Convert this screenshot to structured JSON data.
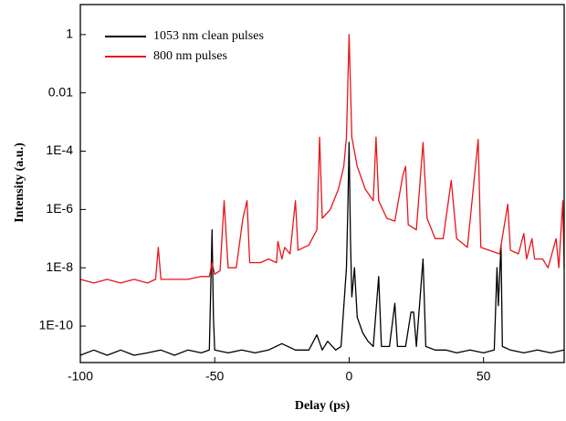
{
  "chart_data": {
    "type": "line",
    "xlabel": "Delay (ps)",
    "ylabel": "Intensity (a.u.)",
    "xlim": [
      -100,
      80
    ],
    "xticks": [
      -100,
      -50,
      0,
      50
    ],
    "ylim": [
      5.6e-12,
      10.7
    ],
    "log_y": true,
    "yticks": [
      {
        "value": 1e-10,
        "label": "1E-10"
      },
      {
        "value": 1e-08,
        "label": "1E-8"
      },
      {
        "value": 1e-06,
        "label": "1E-6"
      },
      {
        "value": 0.0001,
        "label": "1E-4"
      },
      0.01,
      1
    ],
    "legend": "upper left",
    "series": [
      {
        "name": "1053 nm clean pulses",
        "color": "#000000",
        "x": [
          -100,
          -95,
          -90,
          -85,
          -80,
          -75,
          -70,
          -65,
          -60,
          -55,
          -52,
          -51,
          -50.5,
          -50,
          -45,
          -40,
          -35,
          -30,
          -25,
          -20,
          -15,
          -12,
          -10,
          -8,
          -5,
          -3,
          -1,
          -0.5,
          0,
          0.5,
          1,
          2,
          3,
          5,
          7,
          9,
          11,
          12,
          15,
          17,
          18,
          21,
          23,
          24,
          25,
          27.5,
          28.5,
          32,
          36,
          40,
          45,
          50,
          54,
          55,
          55.5,
          56.5,
          57,
          60,
          65,
          70,
          75,
          80
        ],
        "values": [
          1e-11,
          1.5e-11,
          1e-11,
          1.5e-11,
          1e-11,
          1.2e-11,
          1.5e-11,
          1e-11,
          1.5e-11,
          1.2e-11,
          1.5e-11,
          2e-07,
          2e-10,
          1.5e-11,
          1.2e-11,
          1.5e-11,
          1.2e-11,
          1.5e-11,
          2.5e-11,
          1.5e-11,
          1.5e-11,
          5e-11,
          1.5e-11,
          3e-11,
          1.5e-11,
          2e-11,
          1e-08,
          1e-06,
          0.0002,
          1e-07,
          1e-09,
          1e-08,
          2e-10,
          6e-11,
          3e-11,
          2e-11,
          5e-09,
          2e-11,
          2e-11,
          6e-10,
          2e-11,
          2e-11,
          3e-10,
          3e-10,
          2e-11,
          2e-08,
          2e-11,
          1.5e-11,
          1.5e-11,
          1.2e-11,
          1.5e-11,
          1.2e-11,
          1.5e-11,
          1e-08,
          5e-10,
          6e-08,
          2e-11,
          1.5e-11,
          1.2e-11,
          1.5e-11,
          1.2e-11,
          1.5e-11
        ]
      },
      {
        "name": "800 nm pulses",
        "color": "#e8141b",
        "x": [
          -100,
          -95,
          -90,
          -85,
          -80,
          -75,
          -72,
          -71,
          -70,
          -65,
          -60,
          -55,
          -52,
          -51,
          -50,
          -48,
          -46.5,
          -45,
          -42,
          -39.5,
          -38,
          -37,
          -33,
          -30,
          -27,
          -26.5,
          -25,
          -24,
          -22,
          -20,
          -19,
          -15,
          -12,
          -11,
          -10,
          -7,
          -4,
          -2,
          -1,
          0,
          1,
          3,
          6,
          9,
          10,
          11,
          14,
          17,
          20,
          21,
          22,
          25,
          27.5,
          29,
          32,
          35,
          38,
          40,
          44,
          48,
          49,
          52,
          56,
          59,
          60,
          63,
          65,
          66,
          68,
          69,
          72,
          74,
          77,
          78,
          79.5,
          80
        ],
        "values": [
          4e-09,
          3e-09,
          4e-09,
          3e-09,
          4e-09,
          3e-09,
          4e-09,
          5e-08,
          4e-09,
          4e-09,
          4e-09,
          5e-09,
          5e-09,
          1.5e-08,
          6e-09,
          8e-09,
          2e-06,
          1e-08,
          1e-08,
          5e-07,
          2e-06,
          1.5e-08,
          1.5e-08,
          2e-08,
          1.5e-08,
          8e-08,
          2e-08,
          5e-08,
          3e-08,
          2e-06,
          4e-08,
          6e-08,
          2e-07,
          0.0003,
          5e-07,
          1e-06,
          5e-06,
          3e-05,
          0.0003,
          1,
          0.0003,
          3e-05,
          5e-06,
          2e-06,
          0.0003,
          2e-06,
          5e-07,
          4e-07,
          1.5e-05,
          3e-05,
          3e-07,
          2e-07,
          0.0002,
          5e-07,
          1e-07,
          1e-07,
          1e-05,
          1e-07,
          5e-08,
          0.00025,
          5e-08,
          4e-08,
          3e-08,
          1.5e-06,
          4e-08,
          3e-08,
          1.5e-07,
          2e-08,
          1e-07,
          2e-08,
          2e-08,
          1e-08,
          1e-07,
          1e-08,
          2e-06,
          1e-08
        ]
      }
    ]
  }
}
